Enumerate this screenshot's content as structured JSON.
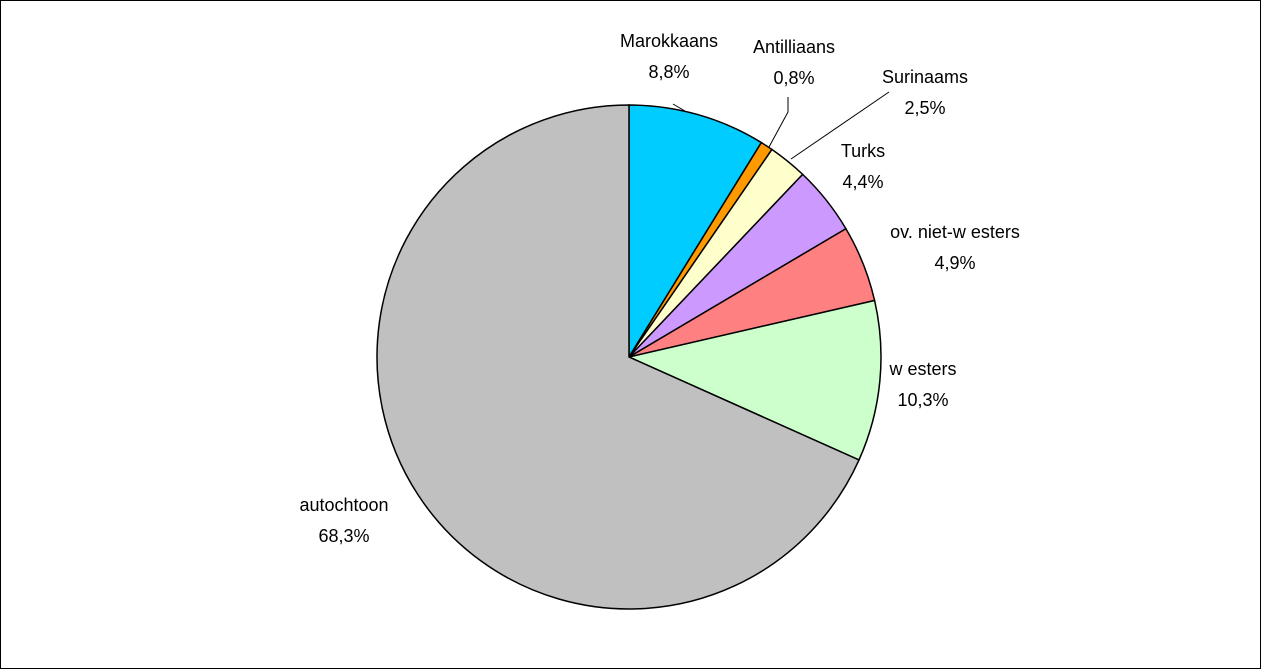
{
  "chart_data": {
    "type": "pie",
    "title": "",
    "start": "12 o'clock",
    "direction": "clockwise",
    "slices": [
      {
        "name": "Marokkaans",
        "value": 8.8,
        "label": "8,8%",
        "color": "#00CCFF"
      },
      {
        "name": "Antilliaans",
        "value": 0.8,
        "label": "0,8%",
        "color": "#FF9900"
      },
      {
        "name": "Surinaams",
        "value": 2.5,
        "label": "2,5%",
        "color": "#FFFFCC"
      },
      {
        "name": "Turks",
        "value": 4.4,
        "label": "4,4%",
        "color": "#CC99FF"
      },
      {
        "name": "ov. niet-w esters",
        "value": 4.9,
        "label": "4,9%",
        "color": "#FF8080"
      },
      {
        "name": "w esters",
        "value": 10.3,
        "label": "10,3%",
        "color": "#CCFFCC"
      },
      {
        "name": "autochtoon",
        "value": 68.3,
        "label": "68,3%",
        "color": "#C0C0C0"
      }
    ]
  }
}
